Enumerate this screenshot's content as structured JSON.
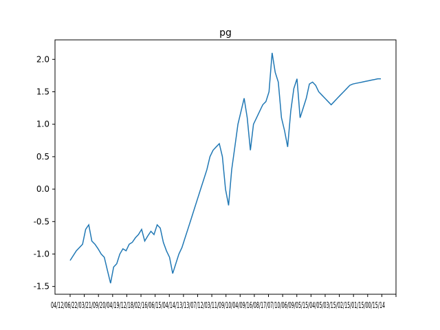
{
  "chart_data": {
    "type": "line",
    "title": "pg",
    "xlabel": "",
    "ylabel": "",
    "ylim": [
      -1.62,
      2.3
    ],
    "grid": false,
    "legend": "none",
    "y_ticks": [
      "-1.5",
      "-1.0",
      "-0.5",
      "0.0",
      "0.5",
      "1.0",
      "1.5",
      "2.0"
    ],
    "y_tick_values": [
      -1.5,
      -1.0,
      -0.5,
      0.0,
      0.5,
      1.0,
      1.5,
      2.0
    ],
    "x_tick_labels": [
      "04/12",
      "1/06/22",
      "1/03/21",
      "1/09/20",
      "1/04/19",
      "1/12/18",
      "1/02/16",
      "1/06/15",
      "1/04/14",
      "1/13/13",
      "1/07/12",
      "1/03/11",
      "1/09/10",
      "1/04/09",
      "1/16/08",
      "1/17/07",
      "1/10/06",
      "1/09/05",
      "1/15/04",
      "1/05/03",
      "1/15/02",
      "1/15/01",
      "1/15/00",
      "1/14"
    ],
    "x_tick_text": "04/12/06/22/03/21/09/20/04/19/12/18/02/16/06/15/04/14/13/13/07/12/03/11/09/10/04/09/16/08/17/07/10/06/09/05/15/04/05/03/15/02/15/01/15/00/15/14",
    "series": [
      {
        "color": "#1f77b4",
        "x": [
          0,
          0.02,
          0.04,
          0.05,
          0.06,
          0.07,
          0.08,
          0.09,
          0.1,
          0.11,
          0.12,
          0.13,
          0.14,
          0.15,
          0.16,
          0.17,
          0.18,
          0.19,
          0.2,
          0.21,
          0.22,
          0.23,
          0.24,
          0.25,
          0.26,
          0.27,
          0.28,
          0.29,
          0.3,
          0.31,
          0.32,
          0.33,
          0.34,
          0.35,
          0.36,
          0.37,
          0.38,
          0.39,
          0.4,
          0.41,
          0.42,
          0.43,
          0.44,
          0.45,
          0.46,
          0.47,
          0.48,
          0.49,
          0.5,
          0.51,
          0.52,
          0.53,
          0.54,
          0.55,
          0.56,
          0.57,
          0.58,
          0.59,
          0.6,
          0.61,
          0.62,
          0.63,
          0.64,
          0.65,
          0.66,
          0.67,
          0.68,
          0.69,
          0.7,
          0.71,
          0.72,
          0.73,
          0.74,
          0.75,
          0.76,
          0.77,
          0.78,
          0.79,
          0.8,
          0.81,
          0.82,
          0.83,
          0.84,
          0.85,
          0.86,
          0.87,
          0.88,
          0.89,
          0.9,
          0.91,
          0.92,
          0.93,
          0.94,
          0.95,
          0.96,
          0.97,
          0.98,
          0.99,
          1.0
        ],
        "y": [
          -1.1,
          -0.95,
          -0.85,
          -0.62,
          -0.55,
          -0.8,
          -0.85,
          -0.92,
          -1.0,
          -1.05,
          -1.25,
          -1.45,
          -1.2,
          -1.15,
          -1.0,
          -0.92,
          -0.95,
          -0.85,
          -0.82,
          -0.75,
          -0.7,
          -0.62,
          -0.8,
          -0.72,
          -0.65,
          -0.7,
          -0.55,
          -0.6,
          -0.82,
          -0.95,
          -1.05,
          -1.3,
          -1.15,
          -1.0,
          -0.9,
          -0.75,
          -0.6,
          -0.45,
          -0.3,
          -0.15,
          0.0,
          0.15,
          0.3,
          0.5,
          0.6,
          0.65,
          0.7,
          0.5,
          0.0,
          -0.25,
          0.3,
          0.65,
          1.0,
          1.2,
          1.4,
          1.1,
          0.6,
          1.0,
          1.1,
          1.2,
          1.3,
          1.35,
          1.5,
          2.1,
          1.8,
          1.65,
          1.1,
          0.9,
          0.65,
          1.2,
          1.55,
          1.7,
          1.1,
          1.25,
          1.4,
          1.62,
          1.65,
          1.6,
          1.5,
          1.45,
          1.4,
          1.35,
          1.3,
          1.35,
          1.4,
          1.45,
          1.5,
          1.55,
          1.6,
          1.62,
          1.63,
          1.64,
          1.65,
          1.66,
          1.67,
          1.68,
          1.69,
          1.7,
          1.7
        ]
      }
    ]
  }
}
